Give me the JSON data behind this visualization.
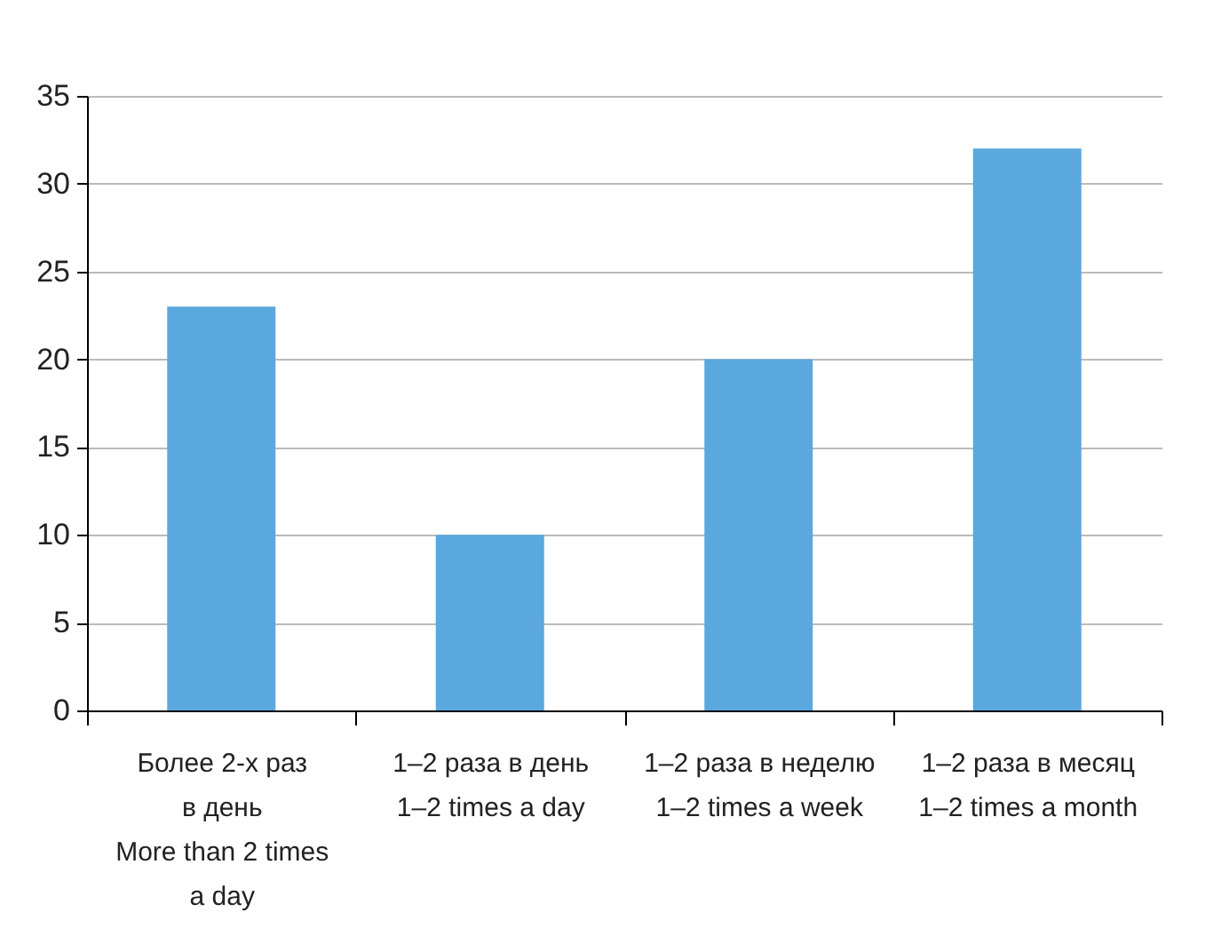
{
  "chart_data": {
    "type": "bar",
    "categories": [
      "Более 2-х раз\nв день\nMore than 2 times\na day",
      "1–2 раза в день\n1–2 times a day",
      "1–2 раза  в неделю\n1–2 times a week",
      "1–2 раза в месяц\n1–2 times a month"
    ],
    "values": [
      23,
      10,
      20,
      32
    ],
    "color": "#5aa8de",
    "ylim": [
      0,
      35
    ],
    "yticks": [
      0,
      5,
      10,
      15,
      20,
      25,
      30,
      35
    ],
    "grid": "y"
  }
}
